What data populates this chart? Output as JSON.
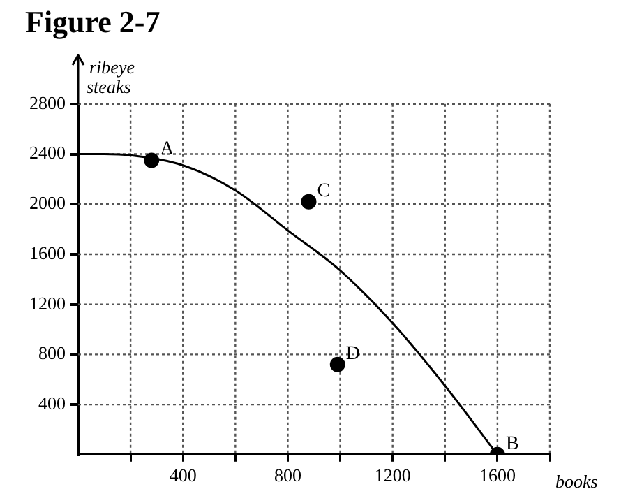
{
  "chart_data": {
    "type": "line",
    "title": "Figure 2-7",
    "xlabel": "books",
    "ylabel": "ribeye steaks",
    "xlim": [
      0,
      1800
    ],
    "ylim": [
      0,
      2800
    ],
    "xticks": [
      {
        "value": 200,
        "label": null
      },
      400,
      {
        "value": 600,
        "label": null
      },
      800,
      {
        "value": 1000,
        "label": null
      },
      1200,
      {
        "value": 1400,
        "label": null
      },
      1600,
      {
        "value": 1800,
        "label": null
      }
    ],
    "yticks": [
      400,
      800,
      1200,
      1600,
      2000,
      2400,
      2800
    ],
    "grid": true,
    "line_style": "solid",
    "series": [
      {
        "color": "#000000",
        "marker": "none",
        "x": [
          0,
          100,
          200,
          400,
          600,
          800,
          1000,
          1200,
          1400,
          1600
        ],
        "values": [
          2400,
          2400,
          2390,
          2310,
          2110,
          1790,
          1470,
          1050,
          550,
          0
        ]
      },
      {
        "type": "scatter",
        "color": "#000000",
        "marker": "circle",
        "x": [
          280,
          880,
          990,
          1600
        ],
        "values": [
          2350,
          2020,
          720,
          0
        ]
      }
    ],
    "annotations": [
      {
        "text": "A",
        "x": 280,
        "y": 2350
      },
      {
        "text": "C",
        "x": 880,
        "y": 2020
      },
      {
        "text": "D",
        "x": 990,
        "y": 720
      },
      {
        "text": "B",
        "x": 1600,
        "y": 0
      }
    ]
  }
}
